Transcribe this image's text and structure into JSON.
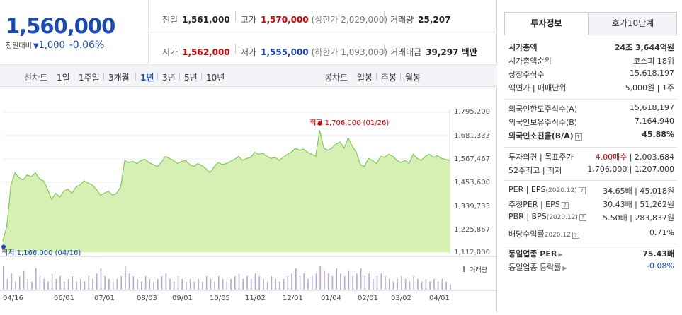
{
  "price": {
    "current": "1,560,000",
    "change_label": "전일대비",
    "change_icon": "triangle-down-icon",
    "change_arrow": "▼",
    "change": "1,000",
    "change_pct": "-0.06%"
  },
  "quote": {
    "prev_close": {
      "label": "전일",
      "value": "1,561,000"
    },
    "high": {
      "label": "고가",
      "value": "1,570,000",
      "sub": "(상한가 2,029,000)"
    },
    "volume": {
      "label": "거래량",
      "value": "25,207"
    },
    "open": {
      "label": "시가",
      "value": "1,562,000"
    },
    "low": {
      "label": "저가",
      "value": "1,555,000",
      "sub": "(하한가 1,093,000)"
    },
    "amount": {
      "label": "거래대금",
      "value": "39,297 백만"
    }
  },
  "toolbar": {
    "line_label": "선차트",
    "periods": [
      "1일",
      "1주일",
      "3개월",
      "1년",
      "3년",
      "5년",
      "10년"
    ],
    "active_period": "1년",
    "candle_label": "봉차트",
    "candles": [
      "일봉",
      "주봉",
      "월봉"
    ]
  },
  "colors": {
    "up": "#d40000",
    "down": "#1a48b8",
    "area_fill": "#d6f0b4",
    "area_line": "#7fc85a"
  },
  "chart_data": {
    "type": "area",
    "x_ticks": [
      "04/16",
      "06/01",
      "07/01",
      "08/03",
      "09/01",
      "10/05",
      "11/02",
      "12/01",
      "01/04",
      "02/01",
      "03/02",
      "04/01"
    ],
    "y_ticks": [
      "1,795,200",
      "1,681,333",
      "1,567,467",
      "1,453,600",
      "1,339,733",
      "1,225,867",
      "1,112,000"
    ],
    "ylim": [
      1112000,
      1795200
    ],
    "values": [
      1166000,
      1240000,
      1440000,
      1500000,
      1475000,
      1465000,
      1490000,
      1480000,
      1500000,
      1470000,
      1460000,
      1420000,
      1370000,
      1400000,
      1380000,
      1410000,
      1420000,
      1400000,
      1430000,
      1440000,
      1460000,
      1450000,
      1440000,
      1420000,
      1390000,
      1400000,
      1410000,
      1390000,
      1400000,
      1430000,
      1560000,
      1550000,
      1555000,
      1545000,
      1560000,
      1565000,
      1550000,
      1540000,
      1530000,
      1550000,
      1580000,
      1570000,
      1560000,
      1545000,
      1555000,
      1560000,
      1540000,
      1530000,
      1545000,
      1535000,
      1520000,
      1500000,
      1530000,
      1550000,
      1540000,
      1545000,
      1555000,
      1565000,
      1580000,
      1560000,
      1570000,
      1575000,
      1600000,
      1590000,
      1595000,
      1580000,
      1570000,
      1575000,
      1560000,
      1575000,
      1590000,
      1600000,
      1620000,
      1610000,
      1615000,
      1600000,
      1590000,
      1580000,
      1706000,
      1620000,
      1610000,
      1620000,
      1640000,
      1650000,
      1620000,
      1670000,
      1630000,
      1600000,
      1540000,
      1530000,
      1570000,
      1560000,
      1545000,
      1580000,
      1575000,
      1590000,
      1580000,
      1560000,
      1550000,
      1560000,
      1545000,
      1590000,
      1570000,
      1560000,
      1580000,
      1590000,
      1575000,
      1583000,
      1570000,
      1565000,
      1560000
    ],
    "high_label": "최고 1,706,000 (01/26)",
    "low_label": "최저 1,166,000 (04/16)",
    "high_index": 78,
    "low_index": 0,
    "volume_label": "거래량",
    "volume": [
      9,
      4,
      6,
      3,
      5,
      7,
      4,
      3,
      8,
      5,
      4,
      3,
      6,
      4,
      5,
      3,
      4,
      5,
      3,
      4,
      3,
      5,
      4,
      6,
      8,
      5,
      4,
      3,
      4,
      5,
      9,
      6,
      5,
      4,
      3,
      5,
      4,
      3,
      4,
      5,
      6,
      4,
      3,
      5,
      4,
      3,
      4,
      3,
      4,
      3,
      5,
      4,
      3,
      5,
      4,
      3,
      4,
      5,
      6,
      4,
      5,
      4,
      6,
      5,
      4,
      3,
      5,
      4,
      3,
      4,
      5,
      6,
      8,
      5,
      6,
      4,
      5,
      6,
      9,
      7,
      6,
      5,
      8,
      6,
      5,
      7,
      5,
      6,
      8,
      5,
      6,
      4,
      5,
      6,
      5,
      4,
      3,
      4,
      5,
      4,
      3,
      5,
      4,
      3,
      4,
      3,
      4,
      3,
      4,
      3,
      2
    ]
  },
  "right_panel": {
    "tabs": [
      "투자정보",
      "호가10단계"
    ],
    "rows": [
      {
        "k": "시가총액",
        "v": "24조 3,644억원",
        "kb": true,
        "vb": true
      },
      {
        "k": "시가총액순위",
        "v": "코스피 18위"
      },
      {
        "k": "상장주식수",
        "v": "15,618,197"
      },
      {
        "k": "액면가 | 매매단위",
        "v": "5,000원 | 1주"
      },
      {
        "k": "외국인한도주식수(A)",
        "v": "15,618,197"
      },
      {
        "k": "외국인보유주식수(B)",
        "v": "7,164,940"
      },
      {
        "k": "외국인소진율(B/A)",
        "v": "45.88%",
        "kb": true,
        "vb": true,
        "q": true
      },
      {
        "k": "투자의견 | 목표주가",
        "v_red": "4.00매수",
        "v": " | 2,003,684"
      },
      {
        "k": "52주최고 | 최저",
        "v": "1,706,000 | 1,207,000"
      },
      {
        "k": "PER | EPS",
        "k_small": "(2020.12)",
        "v": "34.65배 | 45,018원",
        "q": true
      },
      {
        "k": "추정PER | EPS",
        "v": "30.43배 | 51,262원",
        "q": true
      },
      {
        "k": "PBR | BPS",
        "k_small": "(2020.12)",
        "v": "5.50배 | 283,837원",
        "q": true
      },
      {
        "k": "배당수익률",
        "k_small": "2020.12",
        "v": "0.71%",
        "q": true
      },
      {
        "k": "동일업종 PER",
        "v": "75.43배",
        "kb": true,
        "vb": true,
        "arrow": true
      },
      {
        "k": "동일업종 등락률",
        "v": "-0.08%",
        "arrow": true,
        "vblue": true
      }
    ]
  }
}
